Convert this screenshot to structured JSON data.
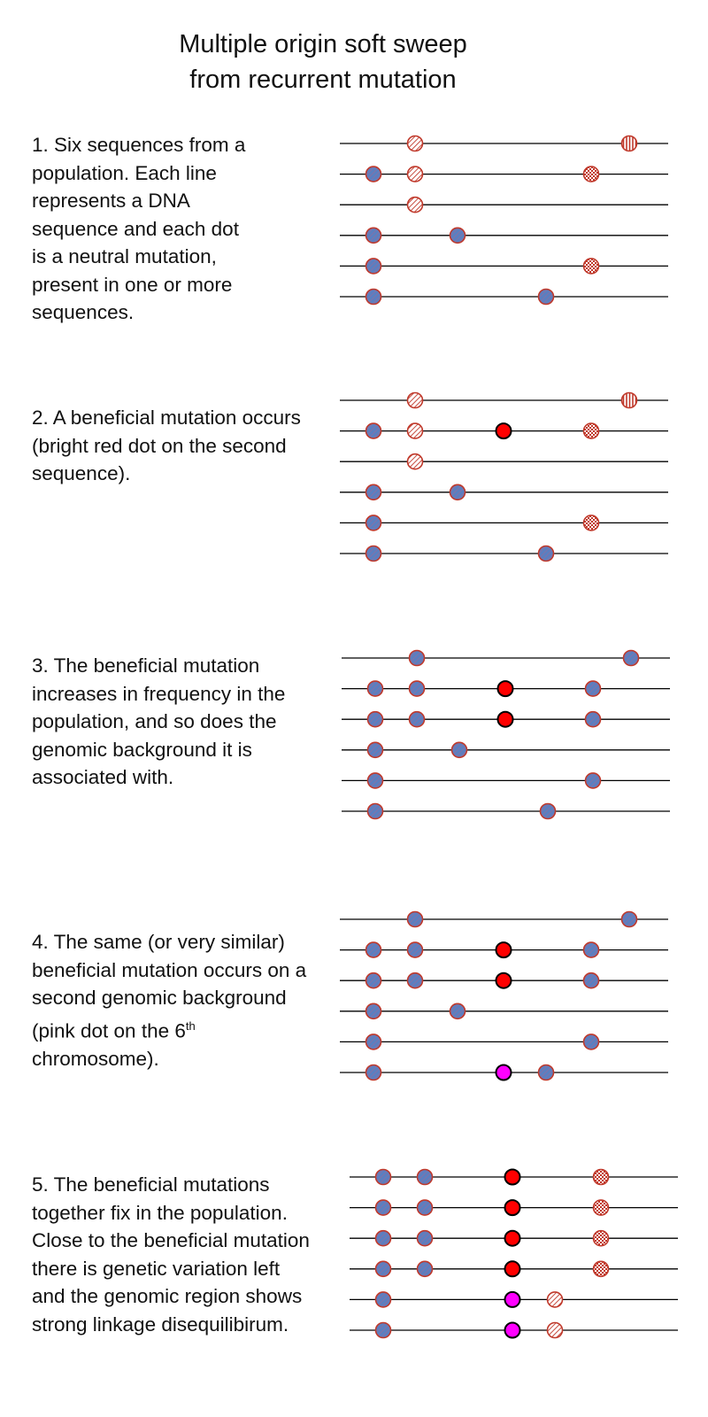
{
  "title": {
    "line1": "Multiple origin soft sweep",
    "line2": "from recurrent mutation"
  },
  "colors": {
    "line": "#000000",
    "dot_fill": "#5a7fc0",
    "dot_stroke": "#c0392b",
    "hatch": "#c0392b",
    "beneficial": "#ff0000",
    "beneficial_second": "#ff00ff"
  },
  "steps": [
    {
      "lines": [
        "1. Six sequences from a",
        "population. Each line",
        "represents a DNA",
        "sequence and each dot",
        "is a neutral mutation,",
        "present in one or more",
        "sequences."
      ],
      "sequences": [
        [
          {
            "pos": 2,
            "style": "diag"
          },
          {
            "pos": 6,
            "style": "vert"
          }
        ],
        [
          {
            "pos": 1,
            "style": "blue"
          },
          {
            "pos": 2,
            "style": "diag"
          },
          {
            "pos": 5,
            "style": "check"
          }
        ],
        [
          {
            "pos": 2,
            "style": "diag"
          }
        ],
        [
          {
            "pos": 1,
            "style": "blue"
          },
          {
            "pos": 3,
            "style": "blue"
          }
        ],
        [
          {
            "pos": 1,
            "style": "blue"
          },
          {
            "pos": 5,
            "style": "check"
          }
        ],
        [
          {
            "pos": 1,
            "style": "blue"
          },
          {
            "pos": 4,
            "style": "blue"
          }
        ]
      ]
    },
    {
      "lines": [
        "2. A beneficial mutation occurs",
        "(bright red dot on the second",
        "sequence)."
      ],
      "sequences": [
        [
          {
            "pos": 2,
            "style": "diag"
          },
          {
            "pos": 6,
            "style": "vert"
          }
        ],
        [
          {
            "pos": 1,
            "style": "blue"
          },
          {
            "pos": 2,
            "style": "diag"
          },
          {
            "pos": 3.5,
            "style": "red"
          },
          {
            "pos": 5,
            "style": "check"
          }
        ],
        [
          {
            "pos": 2,
            "style": "diag"
          }
        ],
        [
          {
            "pos": 1,
            "style": "blue"
          },
          {
            "pos": 3,
            "style": "blue"
          }
        ],
        [
          {
            "pos": 1,
            "style": "blue"
          },
          {
            "pos": 5,
            "style": "check"
          }
        ],
        [
          {
            "pos": 1,
            "style": "blue"
          },
          {
            "pos": 4,
            "style": "blue"
          }
        ]
      ]
    },
    {
      "lines": [
        "3. The beneficial mutation",
        "increases in frequency in the",
        "population, and so does the",
        "genomic background it is",
        "associated with."
      ],
      "sequences": [
        [
          {
            "pos": 2,
            "style": "blue"
          },
          {
            "pos": 6,
            "style": "blue"
          }
        ],
        [
          {
            "pos": 1,
            "style": "blue"
          },
          {
            "pos": 2,
            "style": "blue"
          },
          {
            "pos": 3.5,
            "style": "red"
          },
          {
            "pos": 5,
            "style": "blue"
          }
        ],
        [
          {
            "pos": 1,
            "style": "blue"
          },
          {
            "pos": 2,
            "style": "blue"
          },
          {
            "pos": 3.5,
            "style": "red"
          },
          {
            "pos": 5,
            "style": "blue"
          }
        ],
        [
          {
            "pos": 1,
            "style": "blue"
          },
          {
            "pos": 3,
            "style": "blue"
          }
        ],
        [
          {
            "pos": 1,
            "style": "blue"
          },
          {
            "pos": 5,
            "style": "blue"
          }
        ],
        [
          {
            "pos": 1,
            "style": "blue"
          },
          {
            "pos": 4,
            "style": "blue"
          }
        ]
      ]
    },
    {
      "lines": [
        "4. The same (or very similar)",
        "beneficial mutation occurs on a",
        "second genomic background",
        "(pink dot on the 6",
        "chromosome)."
      ],
      "superscript": "th",
      "sequences": [
        [
          {
            "pos": 2,
            "style": "blue"
          },
          {
            "pos": 6,
            "style": "blue"
          }
        ],
        [
          {
            "pos": 1,
            "style": "blue"
          },
          {
            "pos": 2,
            "style": "blue"
          },
          {
            "pos": 3.5,
            "style": "red"
          },
          {
            "pos": 5,
            "style": "blue"
          }
        ],
        [
          {
            "pos": 1,
            "style": "blue"
          },
          {
            "pos": 2,
            "style": "blue"
          },
          {
            "pos": 3.5,
            "style": "red"
          },
          {
            "pos": 5,
            "style": "blue"
          }
        ],
        [
          {
            "pos": 1,
            "style": "blue"
          },
          {
            "pos": 3,
            "style": "blue"
          }
        ],
        [
          {
            "pos": 1,
            "style": "blue"
          },
          {
            "pos": 5,
            "style": "blue"
          }
        ],
        [
          {
            "pos": 1,
            "style": "blue"
          },
          {
            "pos": 3.5,
            "style": "magenta"
          },
          {
            "pos": 4,
            "style": "blue"
          }
        ]
      ]
    },
    {
      "lines": [
        "5. The beneficial mutations",
        "together fix in the population.",
        "Close to the beneficial mutation",
        "there is genetic variation left",
        "and the genomic region shows",
        "strong linkage disequilibirum."
      ],
      "sequences": [
        [
          {
            "pos": 1,
            "style": "blue"
          },
          {
            "pos": 2,
            "style": "blue"
          },
          {
            "pos": 3.5,
            "style": "red"
          },
          {
            "pos": 5,
            "style": "check"
          }
        ],
        [
          {
            "pos": 1,
            "style": "blue"
          },
          {
            "pos": 2,
            "style": "blue"
          },
          {
            "pos": 3.5,
            "style": "red"
          },
          {
            "pos": 5,
            "style": "check"
          }
        ],
        [
          {
            "pos": 1,
            "style": "blue"
          },
          {
            "pos": 2,
            "style": "blue"
          },
          {
            "pos": 3.5,
            "style": "red"
          },
          {
            "pos": 5,
            "style": "check"
          }
        ],
        [
          {
            "pos": 1,
            "style": "blue"
          },
          {
            "pos": 2,
            "style": "blue"
          },
          {
            "pos": 3.5,
            "style": "red"
          },
          {
            "pos": 5,
            "style": "check"
          }
        ],
        [
          {
            "pos": 1,
            "style": "blue"
          },
          {
            "pos": 3.5,
            "style": "magenta"
          },
          {
            "pos": 4,
            "style": "diag"
          }
        ],
        [
          {
            "pos": 1,
            "style": "blue"
          },
          {
            "pos": 3.5,
            "style": "magenta"
          },
          {
            "pos": 4,
            "style": "diag"
          }
        ]
      ]
    }
  ]
}
